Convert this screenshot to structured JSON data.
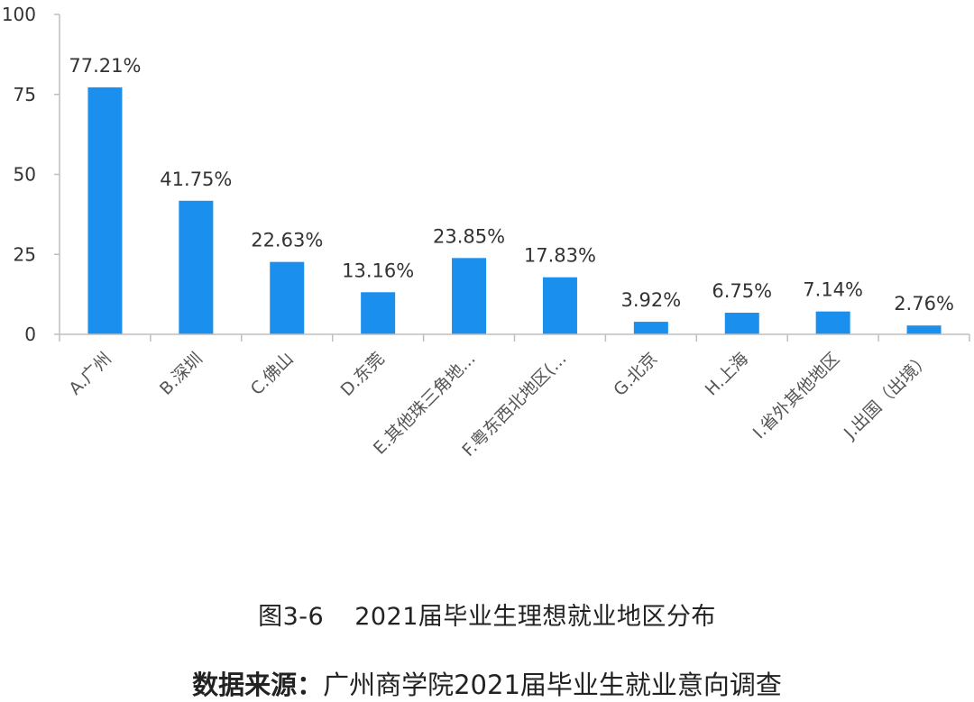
{
  "chart_data": {
    "type": "bar",
    "categories": [
      "A.广州",
      "B.深圳",
      "C.佛山",
      "D.东莞",
      "E.其他珠三角地...",
      "F.粤东西北地区(...",
      "G.北京",
      "H.上海",
      "I.省外其他地区",
      "J.出国（出境）"
    ],
    "values": [
      77.21,
      41.75,
      22.63,
      13.16,
      23.85,
      17.83,
      3.92,
      6.75,
      7.14,
      2.76
    ],
    "value_labels": [
      "77.21%",
      "41.75%",
      "22.63%",
      "13.16%",
      "23.85%",
      "17.83%",
      "3.92%",
      "6.75%",
      "7.14%",
      "2.76%"
    ],
    "y_ticks": [
      "0",
      "25",
      "50",
      "75",
      "100"
    ],
    "ylim": [
      0,
      100
    ],
    "grid": false,
    "title": "",
    "xlabel": "",
    "ylabel": "",
    "bar_color": "#1a8fed"
  },
  "caption": {
    "figure_number": "图3-6",
    "figure_title": "2021届毕业生理想就业地区分布",
    "source_label": "数据来源：",
    "source_text": "广州商学院2021届毕业生就业意向调查"
  }
}
